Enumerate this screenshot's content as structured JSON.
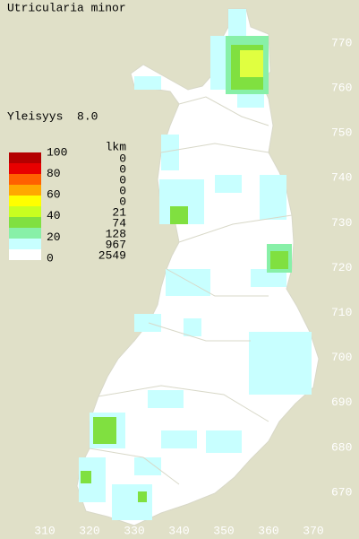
{
  "title": "Utricularia minor",
  "summary": "Yleisyys  8.0",
  "legend": {
    "scale_labels": [
      "100",
      "80",
      "60",
      "40",
      "20",
      "0"
    ],
    "count_header": "lkm",
    "classes": [
      {
        "color": "#b40000",
        "count": "0"
      },
      {
        "color": "#e80000",
        "count": "0"
      },
      {
        "color": "#ff6000",
        "count": "0"
      },
      {
        "color": "#ffa800",
        "count": "0"
      },
      {
        "color": "#ffff00",
        "count": "0"
      },
      {
        "color": "#c8ff20",
        "count": "21"
      },
      {
        "color": "#80e040",
        "count": "74"
      },
      {
        "color": "#88f0a8",
        "count": "128"
      },
      {
        "color": "#c8ffff",
        "count": "967"
      },
      {
        "color": "#ffffff",
        "count": "2549"
      }
    ]
  },
  "axes": {
    "y_labels": [
      "770",
      "760",
      "750",
      "740",
      "730",
      "720",
      "710",
      "700",
      "690",
      "680",
      "670"
    ],
    "x_labels": [
      "310",
      "320",
      "330",
      "340",
      "350",
      "360",
      "370"
    ]
  }
}
